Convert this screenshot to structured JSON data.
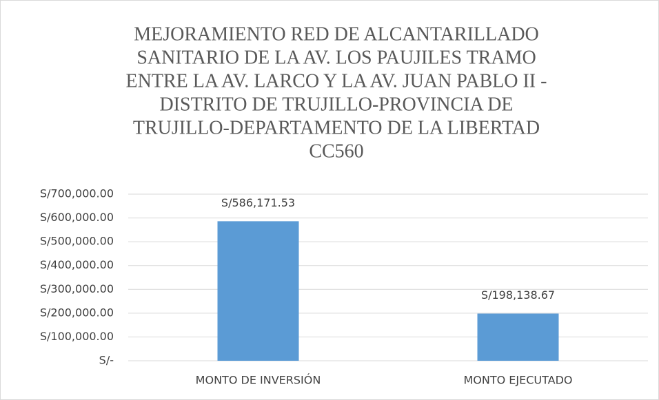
{
  "chart_data": {
    "type": "bar",
    "title": [
      "MEJORAMIENTO RED DE ALCANTARILLADO",
      "SANITARIO DE LA AV. LOS PAUJILES  TRAMO",
      "ENTRE LA AV. LARCO Y LA AV. JUAN PABLO II -",
      "DISTRITO DE TRUJILLO-PROVINCIA DE",
      "TRUJILLO-DEPARTAMENTO DE LA LIBERTAD",
      "CC560"
    ],
    "categories": [
      "MONTO DE INVERSIÓN",
      "MONTO EJECUTADO"
    ],
    "values": [
      586171.53,
      198138.67
    ],
    "value_labels": [
      "S/586,171.53",
      "S/198,138.67"
    ],
    "color": "#5b9bd5",
    "ylim": [
      0,
      700000
    ],
    "yticks": [
      {
        "value": 0,
        "label": "S/-"
      },
      {
        "value": 100000,
        "label": "S/100,000.00"
      },
      {
        "value": 200000,
        "label": "S/200,000.00"
      },
      {
        "value": 300000,
        "label": "S/300,000.00"
      },
      {
        "value": 400000,
        "label": "S/400,000.00"
      },
      {
        "value": 500000,
        "label": "S/500,000.00"
      },
      {
        "value": 600000,
        "label": "S/600,000.00"
      },
      {
        "value": 700000,
        "label": "S/700,000.00"
      }
    ],
    "grid": true
  }
}
